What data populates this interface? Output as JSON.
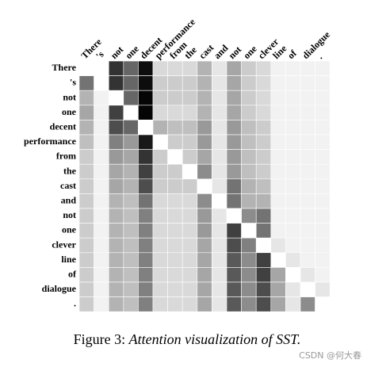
{
  "chart_data": {
    "type": "heatmap",
    "x_labels": [
      "There",
      "'s",
      "not",
      "one",
      "decent",
      "performance",
      "from",
      "the",
      "cast",
      "and",
      "not",
      "one",
      "clever",
      "line",
      "of",
      "dialogue",
      "."
    ],
    "y_labels": [
      "There",
      "'s",
      "not",
      "one",
      "decent",
      "performance",
      "from",
      "the",
      "cast",
      "and",
      "not",
      "one",
      "clever",
      "line",
      "of",
      "dialogue",
      "."
    ],
    "values": [
      [
        0,
        0,
        0.8,
        0.6,
        0.95,
        0.15,
        0.15,
        0.15,
        0.3,
        0.1,
        0.35,
        0.2,
        0.15,
        0.05,
        0.05,
        0.05,
        0.05
      ],
      [
        0.55,
        0,
        0.8,
        0.6,
        0.95,
        0.2,
        0.2,
        0.2,
        0.3,
        0.1,
        0.35,
        0.2,
        0.15,
        0.05,
        0.05,
        0.05,
        0.05
      ],
      [
        0.3,
        0.05,
        0,
        0.6,
        0.98,
        0.2,
        0.2,
        0.2,
        0.3,
        0.1,
        0.35,
        0.2,
        0.15,
        0.05,
        0.05,
        0.05,
        0.05
      ],
      [
        0.35,
        0.05,
        0.75,
        0,
        0.98,
        0.15,
        0.15,
        0.15,
        0.3,
        0.1,
        0.35,
        0.2,
        0.15,
        0.05,
        0.05,
        0.05,
        0.05
      ],
      [
        0.3,
        0.05,
        0.7,
        0.6,
        0,
        0.3,
        0.25,
        0.25,
        0.4,
        0.1,
        0.4,
        0.25,
        0.2,
        0.05,
        0.05,
        0.05,
        0.05
      ],
      [
        0.25,
        0.05,
        0.5,
        0.4,
        0.9,
        0,
        0.2,
        0.2,
        0.4,
        0.1,
        0.4,
        0.25,
        0.2,
        0.05,
        0.05,
        0.05,
        0.05
      ],
      [
        0.2,
        0.05,
        0.4,
        0.35,
        0.8,
        0.2,
        0,
        0.2,
        0.35,
        0.1,
        0.4,
        0.25,
        0.2,
        0.05,
        0.05,
        0.05,
        0.05
      ],
      [
        0.2,
        0.05,
        0.35,
        0.3,
        0.75,
        0.2,
        0.2,
        0,
        0.45,
        0.1,
        0.4,
        0.25,
        0.2,
        0.05,
        0.05,
        0.05,
        0.05
      ],
      [
        0.2,
        0.05,
        0.35,
        0.3,
        0.7,
        0.2,
        0.2,
        0.2,
        0,
        0.1,
        0.55,
        0.3,
        0.25,
        0.05,
        0.05,
        0.05,
        0.05
      ],
      [
        0.2,
        0.05,
        0.3,
        0.25,
        0.55,
        0.15,
        0.15,
        0.15,
        0.45,
        0,
        0.55,
        0.3,
        0.3,
        0.05,
        0.05,
        0.05,
        0.05
      ],
      [
        0.2,
        0.05,
        0.3,
        0.25,
        0.5,
        0.15,
        0.15,
        0.15,
        0.4,
        0.1,
        0,
        0.45,
        0.55,
        0.05,
        0.05,
        0.05,
        0.05
      ],
      [
        0.2,
        0.05,
        0.3,
        0.25,
        0.5,
        0.15,
        0.15,
        0.15,
        0.4,
        0.1,
        0.75,
        0,
        0.55,
        0.05,
        0.05,
        0.05,
        0.05
      ],
      [
        0.2,
        0.05,
        0.3,
        0.25,
        0.5,
        0.15,
        0.15,
        0.15,
        0.35,
        0.1,
        0.7,
        0.5,
        0,
        0.1,
        0.05,
        0.05,
        0.05
      ],
      [
        0.2,
        0.05,
        0.3,
        0.25,
        0.5,
        0.15,
        0.15,
        0.15,
        0.35,
        0.1,
        0.65,
        0.45,
        0.75,
        0,
        0.1,
        0.05,
        0.05
      ],
      [
        0.2,
        0.05,
        0.3,
        0.25,
        0.5,
        0.15,
        0.15,
        0.15,
        0.35,
        0.1,
        0.65,
        0.45,
        0.75,
        0.35,
        0,
        0.1,
        0.05
      ],
      [
        0.2,
        0.05,
        0.3,
        0.25,
        0.5,
        0.15,
        0.15,
        0.15,
        0.35,
        0.1,
        0.65,
        0.45,
        0.7,
        0.35,
        0.1,
        0,
        0.1
      ],
      [
        0.2,
        0.05,
        0.3,
        0.25,
        0.5,
        0.15,
        0.15,
        0.15,
        0.35,
        0.1,
        0.65,
        0.45,
        0.7,
        0.35,
        0.1,
        0.45,
        0
      ]
    ],
    "caption_label": "Figure 3:",
    "caption_text": "Attention visualization of SST.",
    "watermark": "CSDN @何大春"
  }
}
